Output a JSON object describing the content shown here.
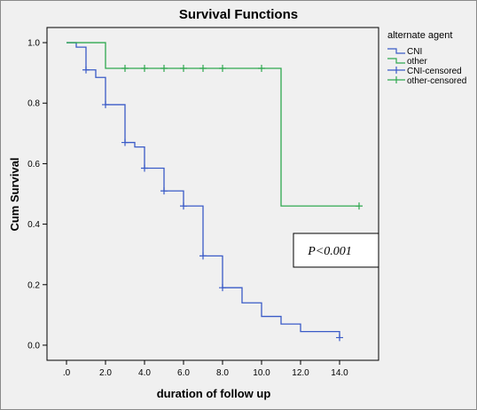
{
  "chart_data": {
    "type": "line",
    "title": "Survival Functions",
    "xlabel": "duration of follow up",
    "ylabel": "Cum Survival",
    "xlim": [
      -1,
      16
    ],
    "ylim": [
      -0.05,
      1.05
    ],
    "x_ticks": [
      0,
      2,
      4,
      6,
      8,
      10,
      12,
      14
    ],
    "x_tick_labels": [
      ".0",
      "2.0",
      "4.0",
      "6.0",
      "8.0",
      "10.0",
      "12.0",
      "14.0"
    ],
    "y_ticks": [
      0,
      0.2,
      0.4,
      0.6,
      0.8,
      1.0
    ],
    "y_tick_labels": [
      "0.0",
      "0.2",
      "0.4",
      "0.6",
      "0.8",
      "1.0"
    ],
    "grid": false,
    "legend": {
      "title": "alternate agent",
      "placement": "right",
      "entries": [
        "CNI",
        "other",
        "CNI-censored",
        "other-censored"
      ]
    },
    "series": [
      {
        "name": "CNI",
        "color": "#3a5bc7",
        "step": true,
        "x": [
          0,
          0.5,
          1,
          1.5,
          2,
          3,
          3.5,
          4,
          5,
          6,
          7,
          8,
          9,
          10,
          11,
          12,
          14
        ],
        "y": [
          1.0,
          0.985,
          0.91,
          0.885,
          0.795,
          0.67,
          0.655,
          0.585,
          0.51,
          0.46,
          0.295,
          0.19,
          0.14,
          0.095,
          0.07,
          0.045,
          0.025
        ]
      },
      {
        "name": "other",
        "color": "#2fa84f",
        "step": true,
        "x": [
          0,
          2,
          11,
          15
        ],
        "y": [
          1.0,
          0.915,
          0.46,
          0.46
        ]
      }
    ],
    "censored": [
      {
        "name": "CNI-censored",
        "color": "#3a5bc7",
        "x": [
          1,
          2,
          3,
          4,
          5,
          6,
          7,
          8,
          14
        ],
        "y": [
          0.91,
          0.795,
          0.67,
          0.585,
          0.51,
          0.46,
          0.295,
          0.19,
          0.025
        ]
      },
      {
        "name": "other-censored",
        "color": "#2fa84f",
        "x": [
          3,
          4,
          5,
          6,
          7,
          8,
          10,
          15
        ],
        "y": [
          0.915,
          0.915,
          0.915,
          0.915,
          0.915,
          0.915,
          0.915,
          0.46
        ]
      }
    ],
    "annotation": "P<0.001"
  }
}
